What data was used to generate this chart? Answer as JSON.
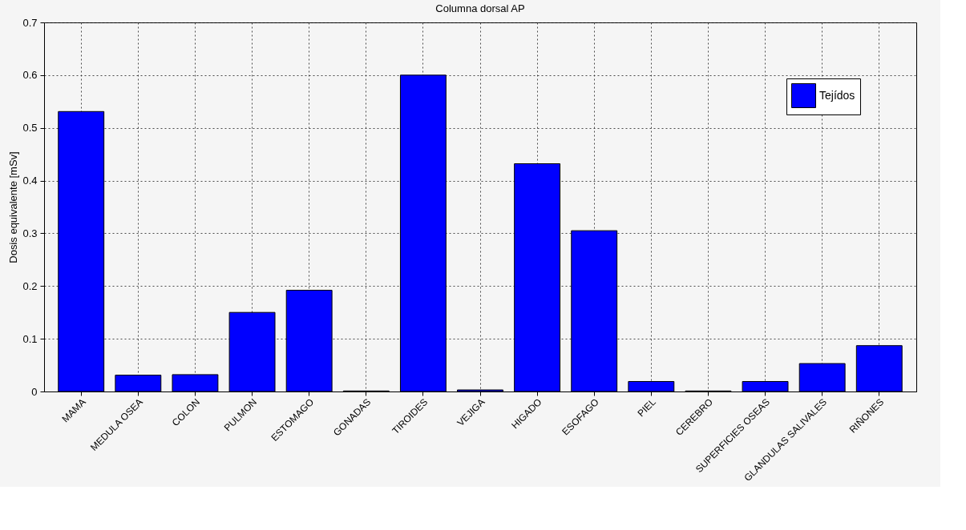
{
  "chart_data": {
    "type": "bar",
    "title": "Columna dorsal AP",
    "ylabel": "Dosis equivalente [mSv]",
    "categories": [
      "MAMA",
      "MEDULA OSEA",
      "COLON",
      "PULMON",
      "ESTOMAGO",
      "GONADAS",
      "TIROIDES",
      "VEJIGA",
      "HIGADO",
      "ESOFAGO",
      "PIEL",
      "CEREBRO",
      "SUPERFICIES OSEAS",
      "GLANDULAS SALIVALES",
      "RIÑONES"
    ],
    "series": [
      {
        "name": "Tejídos",
        "color": "#0000ff",
        "values": [
          0.531,
          0.031,
          0.032,
          0.15,
          0.192,
          0.001,
          0.6,
          0.003,
          0.432,
          0.305,
          0.019,
          0.001,
          0.019,
          0.053,
          0.087
        ]
      }
    ],
    "ylim": [
      0,
      0.7
    ],
    "yticks": [
      0,
      0.1,
      0.2,
      0.3,
      0.4,
      0.5,
      0.6,
      0.7
    ],
    "grid": true,
    "legend": "top right"
  }
}
